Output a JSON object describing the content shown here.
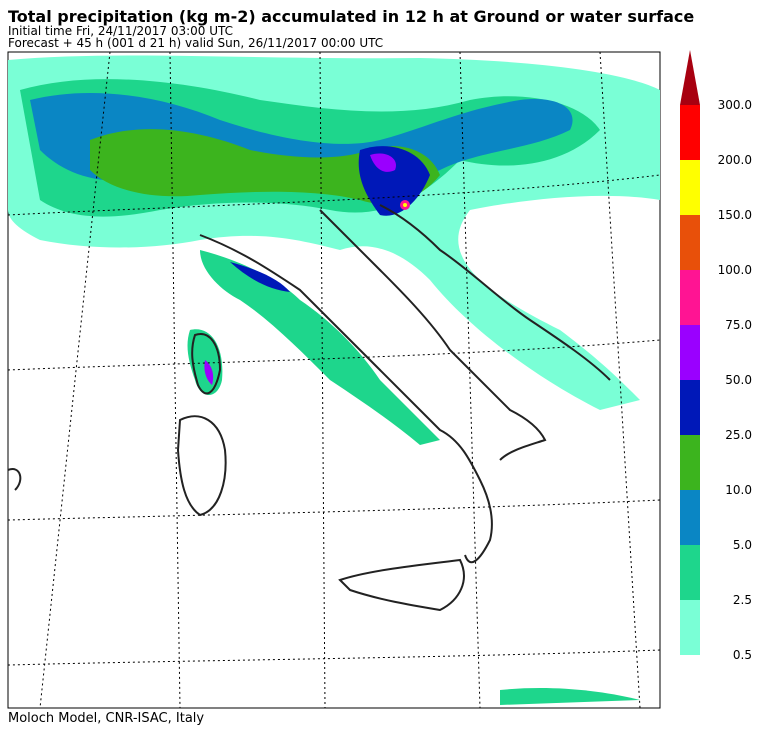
{
  "header": {
    "title": "Total precipitation (kg m-2) accumulated in  12 h at Ground or water surface",
    "initial_time": "Initial time  Fri, 24/11/2017  03:00 UTC",
    "forecast": "Forecast  +  45 h  (001 d 21 h)  valid Sun, 26/11/2017 00:00 UTC"
  },
  "colorbar": {
    "levels": [
      {
        "value": 0.5,
        "label": "0.5"
      },
      {
        "value": 2.5,
        "label": "2.5"
      },
      {
        "value": 5,
        "label": "5.0"
      },
      {
        "value": 10,
        "label": "10.0"
      },
      {
        "value": 25,
        "label": "25.0"
      },
      {
        "value": 50,
        "label": "50.0"
      },
      {
        "value": 75,
        "label": "75.0"
      },
      {
        "value": 100,
        "label": "100.0"
      },
      {
        "value": 150,
        "label": "150.0"
      },
      {
        "value": 200,
        "label": "200.0"
      },
      {
        "value": 300,
        "label": "300.0"
      }
    ],
    "colors": [
      "#7affd6",
      "#1ed68c",
      "#0a86c4",
      "#3cb41e",
      "#0018b8",
      "#9a00ff",
      "#ff1493",
      "#e8500a",
      "#ffff00",
      "#ff0000",
      "#a80010"
    ]
  },
  "footer": "Moloch Model, CNR-ISAC, Italy"
}
